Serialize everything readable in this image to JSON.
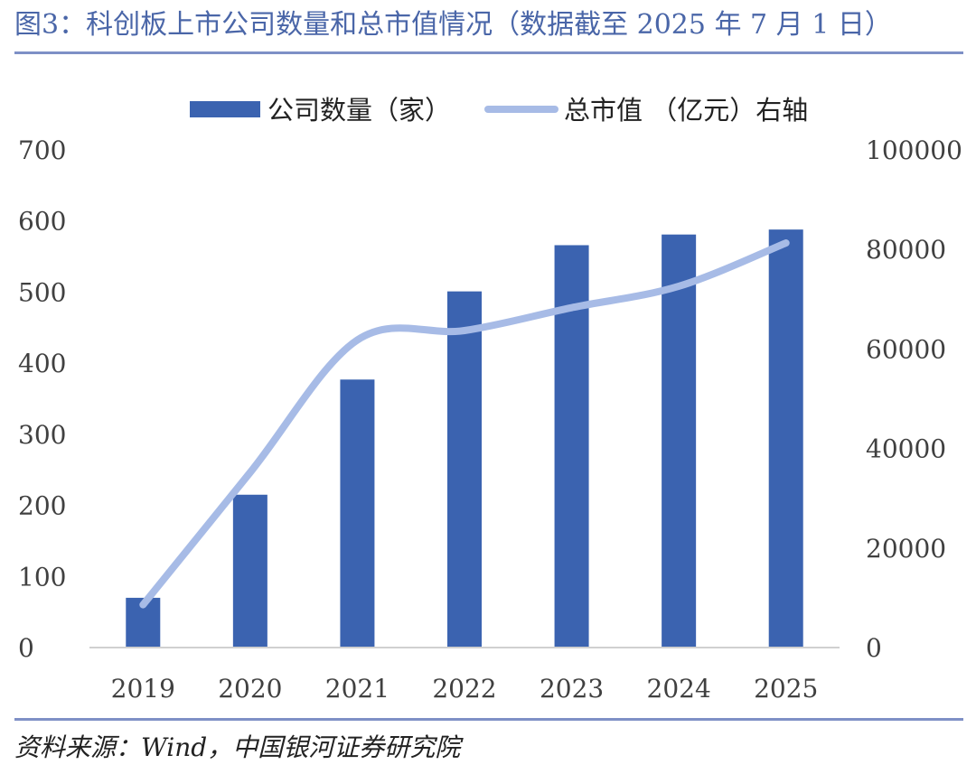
{
  "figure": {
    "title": "图3：科创板上市公司数量和总市值情况（数据截至 2025 年 7 月 1 日）",
    "source": "资料来源：Wind，中国银河证券研究院"
  },
  "colors": {
    "title": "#4a66a8",
    "rule": "#7e90c6",
    "bar": "#3b63b0",
    "line": "#a7bbe6",
    "axis_text": "#404040"
  },
  "chart_data": {
    "type": "bar",
    "categories": [
      "2019",
      "2020",
      "2021",
      "2022",
      "2023",
      "2024",
      "2025"
    ],
    "series": [
      {
        "name": "公司数量（家）",
        "type": "bar",
        "axis": "left",
        "values": [
          70,
          215,
          377,
          501,
          566,
          581,
          588
        ]
      },
      {
        "name": "总市值 （亿元）右轴",
        "type": "line",
        "axis": "right",
        "values": [
          8600,
          35200,
          61800,
          63700,
          68300,
          72600,
          81300
        ]
      }
    ],
    "left_axis": {
      "ylim": [
        0,
        700
      ],
      "ticks": [
        "0",
        "100",
        "200",
        "300",
        "400",
        "500",
        "600",
        "700"
      ]
    },
    "right_axis": {
      "ylim": [
        0,
        100000
      ],
      "ticks": [
        "0",
        "20000",
        "40000",
        "60000",
        "80000",
        "100000"
      ]
    },
    "legend_position": "top-center",
    "grid": false
  }
}
